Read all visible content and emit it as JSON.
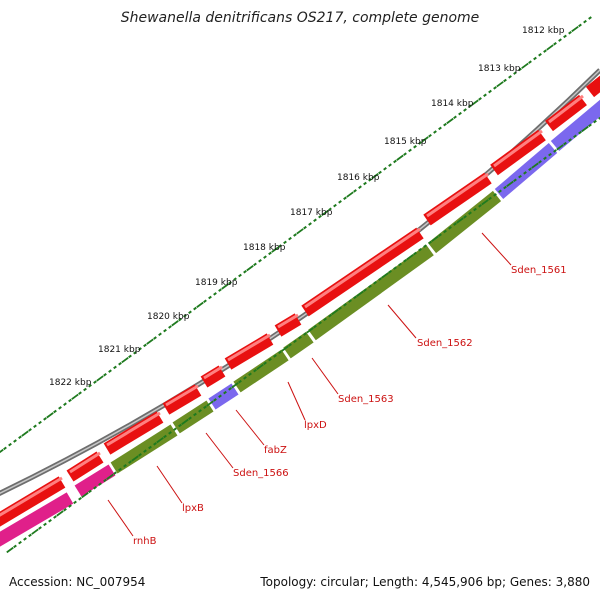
{
  "title": "Shewanella denitrificans OS217, complete genome",
  "footer": {
    "accession": "Accession: NC_007954",
    "summary": "Topology: circular; Length: 4,545,906 bp; Genes: 3,880"
  },
  "colors": {
    "backbone": "#7a7a7a",
    "forward_cds": "#ee1111",
    "reverse_cds_green": "#6b8e23",
    "reverse_cds_blue": "#7b68ee",
    "reverse_cds_pink": "#e0208a",
    "tick": "#1e7a1e",
    "label": "#cc1111"
  },
  "ruler": {
    "labels": [
      "1812 kbp",
      "1813 kbp",
      "1814 kbp",
      "1815 kbp",
      "1816 kbp",
      "1817 kbp",
      "1818 kbp",
      "1819 kbp",
      "1820 kbp",
      "1821 kbp",
      "1822 kbp"
    ]
  },
  "gene_labels": [
    "Sden_1561",
    "Sden_1562",
    "Sden_1563",
    "lpxD",
    "fabZ",
    "Sden_1566",
    "lpxB",
    "rnhB"
  ]
}
